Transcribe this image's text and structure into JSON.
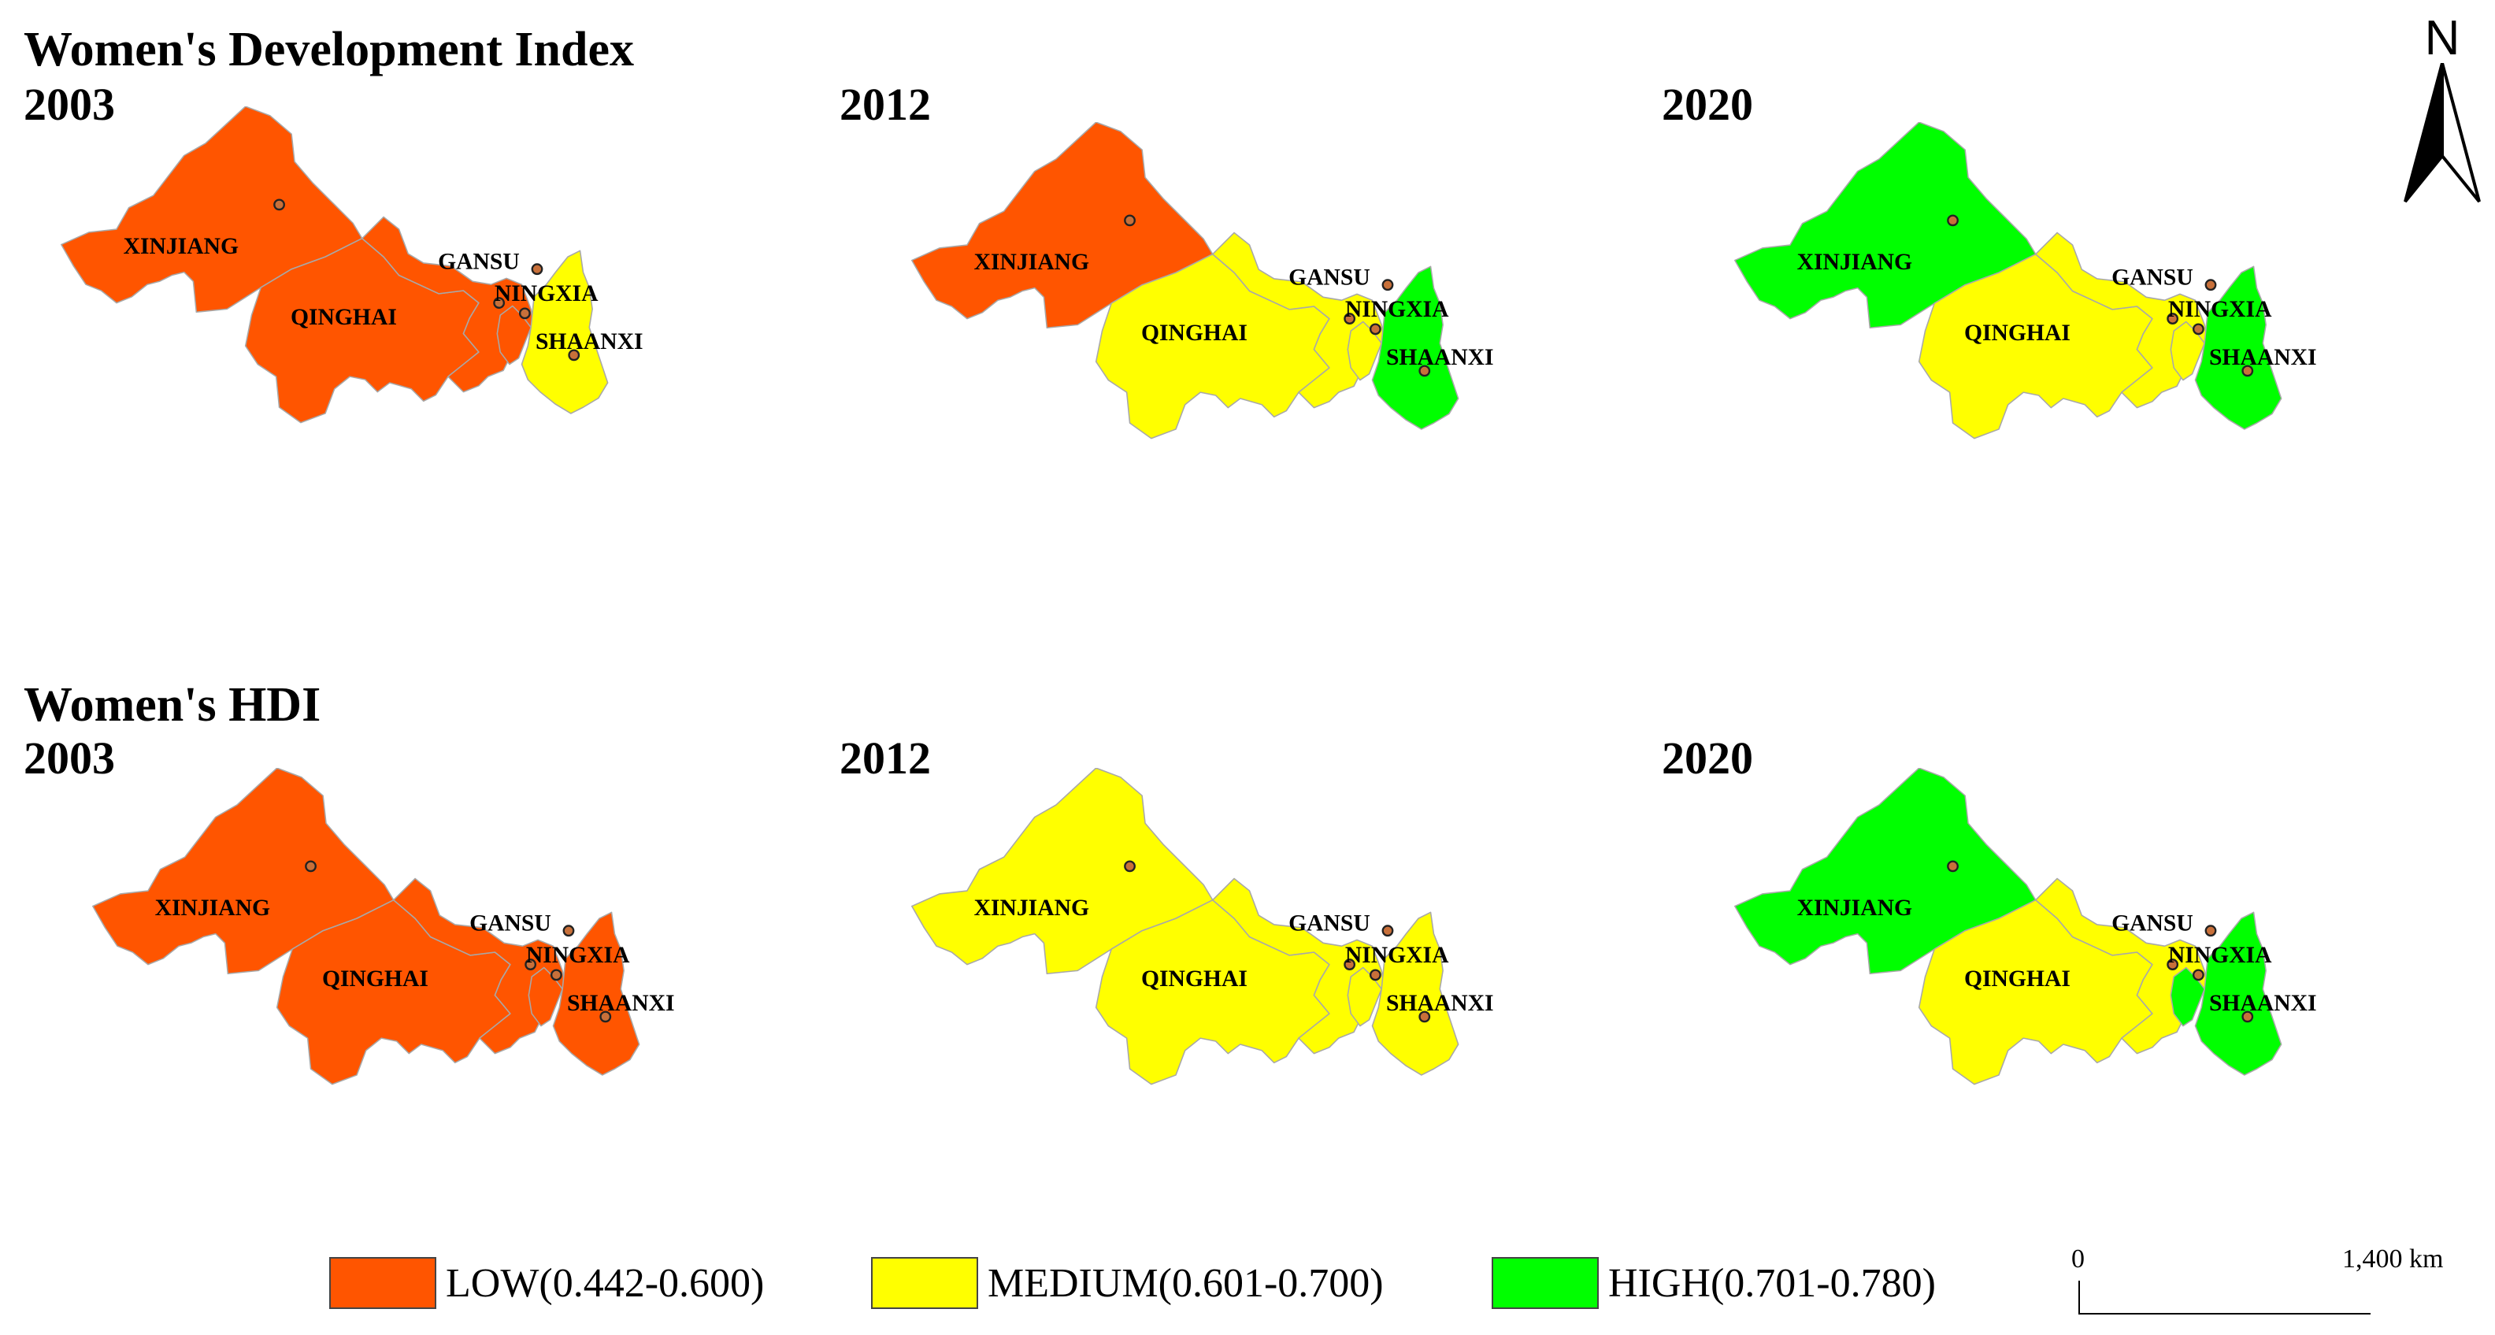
{
  "headings": {
    "wdi": "Women's Development Index",
    "hdi": "Women's HDI"
  },
  "years": [
    "2003",
    "2012",
    "2020"
  ],
  "colors": {
    "low": "#ff5500",
    "medium": "#ffff00",
    "high": "#00ff00",
    "border": "#a8a8a8",
    "dot": "#c8703a"
  },
  "provinces": [
    "XINJIANG",
    "QINGHAI",
    "GANSU",
    "NINGXIA",
    "SHAANXI"
  ],
  "maps": [
    {
      "index": "wdi",
      "year": "2003",
      "classes": {
        "XINJIANG": "low",
        "QINGHAI": "low",
        "GANSU": "low",
        "NINGXIA": "low",
        "SHAANXI": "medium"
      }
    },
    {
      "index": "wdi",
      "year": "2012",
      "classes": {
        "XINJIANG": "low",
        "QINGHAI": "medium",
        "GANSU": "medium",
        "NINGXIA": "medium",
        "SHAANXI": "high"
      }
    },
    {
      "index": "wdi",
      "year": "2020",
      "classes": {
        "XINJIANG": "high",
        "QINGHAI": "medium",
        "GANSU": "medium",
        "NINGXIA": "medium",
        "SHAANXI": "high"
      }
    },
    {
      "index": "hdi",
      "year": "2003",
      "classes": {
        "XINJIANG": "low",
        "QINGHAI": "low",
        "GANSU": "low",
        "NINGXIA": "low",
        "SHAANXI": "low"
      }
    },
    {
      "index": "hdi",
      "year": "2012",
      "classes": {
        "XINJIANG": "medium",
        "QINGHAI": "medium",
        "GANSU": "medium",
        "NINGXIA": "medium",
        "SHAANXI": "medium"
      }
    },
    {
      "index": "hdi",
      "year": "2020",
      "classes": {
        "XINJIANG": "high",
        "QINGHAI": "medium",
        "GANSU": "medium",
        "NINGXIA": "high",
        "SHAANXI": "high"
      }
    }
  ],
  "legend": [
    {
      "key": "low",
      "label": "LOW(0.442-0.600)"
    },
    {
      "key": "medium",
      "label": "MEDIUM(0.601-0.700)"
    },
    {
      "key": "high",
      "label": "HIGH(0.701-0.780)"
    }
  ],
  "north_arrow": {
    "label": "N"
  },
  "scale_bar": {
    "start_label": "0",
    "end_label": "1,400 km"
  }
}
